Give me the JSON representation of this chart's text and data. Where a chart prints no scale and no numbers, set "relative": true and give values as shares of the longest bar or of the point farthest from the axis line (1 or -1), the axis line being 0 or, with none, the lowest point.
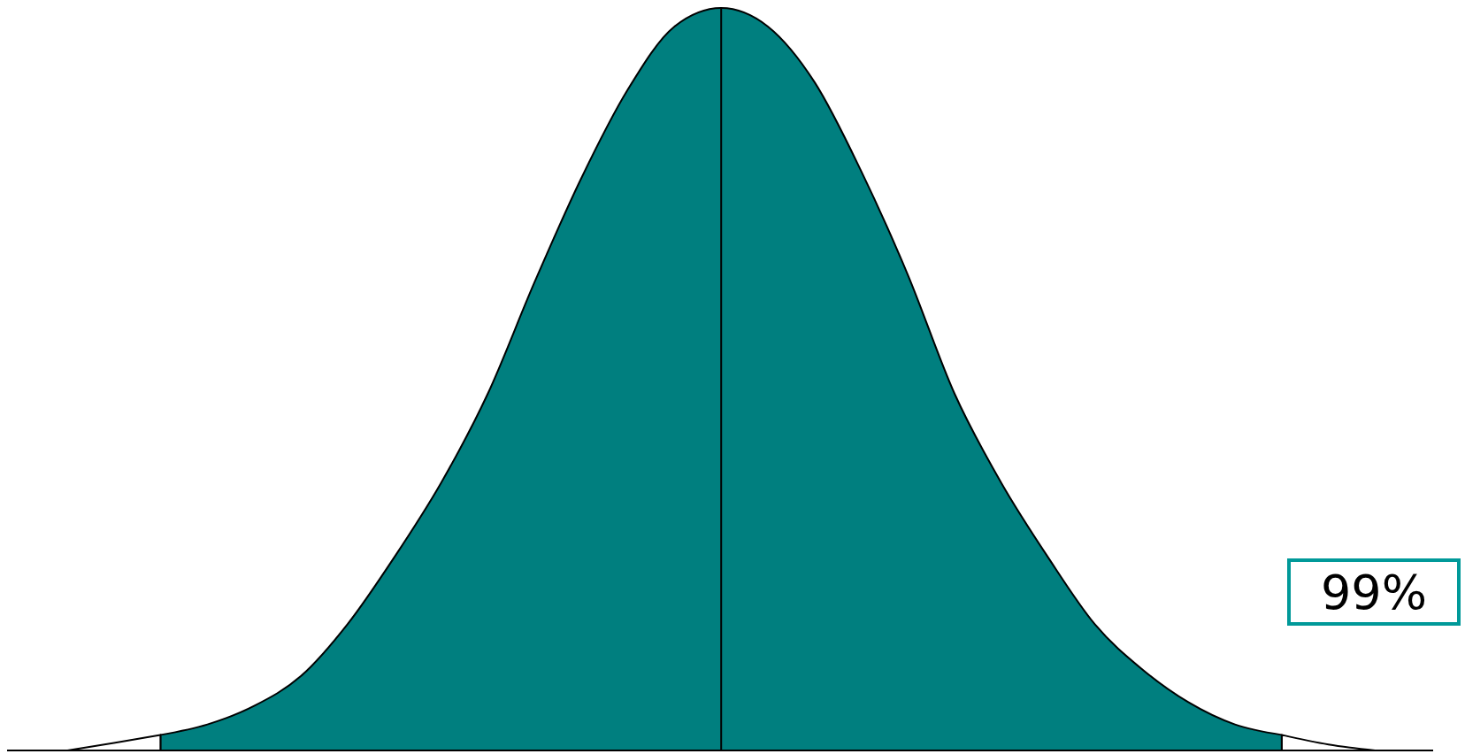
{
  "chart_data": {
    "type": "area",
    "relative": true,
    "categories": [
      null,
      null,
      null,
      null,
      null,
      null,
      null,
      null,
      null,
      null,
      null,
      null,
      null,
      null,
      null,
      null,
      null,
      null,
      null,
      null,
      null,
      null,
      null,
      null,
      null,
      null,
      null,
      null,
      null
    ],
    "series": [
      {
        "color": "#ffffff",
        "values": [
          0,
          0.01,
          0.021,
          null,
          null,
          null,
          null,
          null,
          null,
          null,
          null,
          null,
          null,
          null,
          null,
          null,
          null,
          null,
          null,
          null,
          null,
          null,
          null,
          null,
          null,
          null,
          0.021,
          0.008,
          0
        ]
      },
      {
        "color": "#007f7f",
        "values": [
          null,
          null,
          0.021,
          0.035,
          0.06,
          0.1,
          0.17,
          0.26,
          0.36,
          0.48,
          0.63,
          0.77,
          0.89,
          0.975,
          1,
          0.975,
          0.9,
          0.78,
          0.64,
          0.48,
          0.36,
          0.26,
          0.17,
          0.11,
          0.065,
          0.035,
          0.021,
          null,
          null
        ]
      }
    ],
    "annotations": [
      "99%"
    ]
  }
}
